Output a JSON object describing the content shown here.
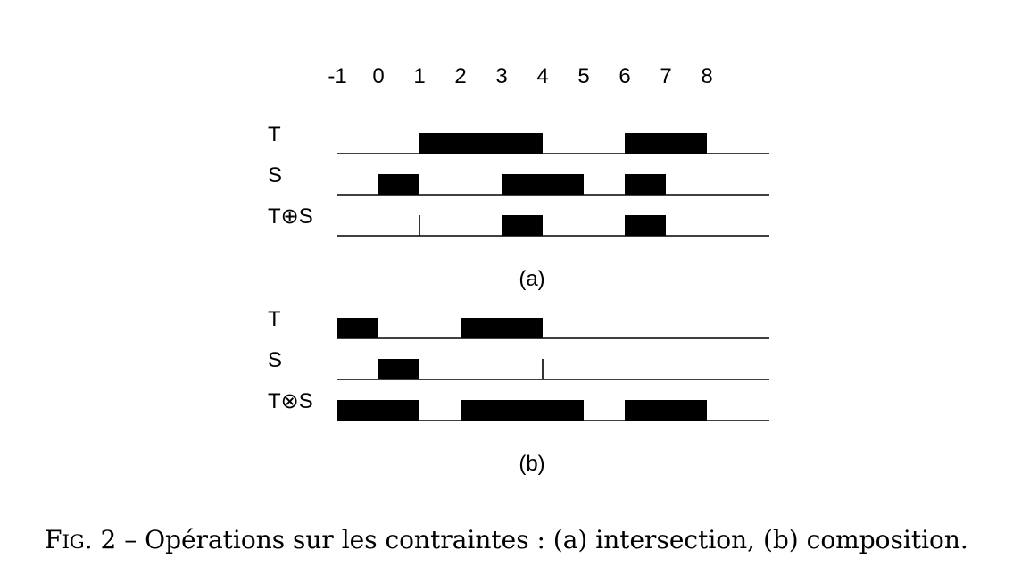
{
  "axis": {
    "ticks": [
      "-1",
      "0",
      "1",
      "2",
      "3",
      "4",
      "5",
      "6",
      "7",
      "8"
    ]
  },
  "panels": [
    {
      "label": "(a)",
      "rows": [
        {
          "label": "T",
          "intervals": [
            [
              1,
              4
            ],
            [
              6,
              8
            ]
          ]
        },
        {
          "label": "S",
          "intervals": [
            [
              0,
              1
            ],
            [
              3,
              5
            ],
            [
              6,
              7
            ]
          ]
        },
        {
          "label": "T⊕S",
          "intervals": [
            [
              1,
              1
            ],
            [
              3,
              4
            ],
            [
              6,
              7
            ]
          ]
        }
      ]
    },
    {
      "label": "(b)",
      "rows": [
        {
          "label": "T",
          "intervals": [
            [
              -1,
              0
            ],
            [
              2,
              4
            ]
          ]
        },
        {
          "label": "S",
          "intervals": [
            [
              0,
              1
            ],
            [
              4,
              4
            ]
          ]
        },
        {
          "label": "T⊗S",
          "intervals": [
            [
              -1,
              1
            ],
            [
              2,
              5
            ],
            [
              6,
              8
            ]
          ]
        }
      ]
    }
  ],
  "caption": {
    "prefix_first": "F",
    "prefix_rest": "IG",
    "number": ". 2",
    "text": " – Opérations sur les contraintes : (a) intersection, (b) composition."
  },
  "colors": {
    "ink": "#000000",
    "background": "#ffffff"
  }
}
